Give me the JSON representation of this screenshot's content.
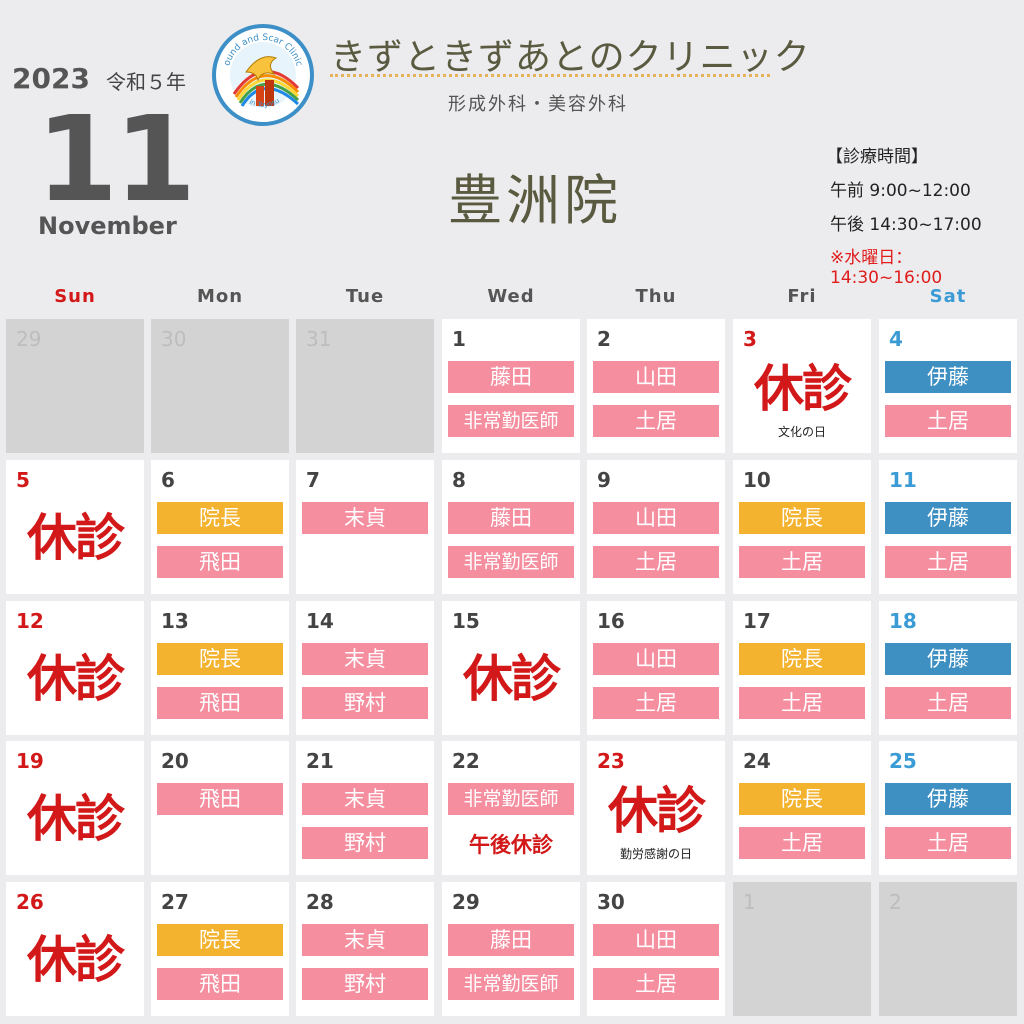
{
  "header": {
    "year": "2023",
    "era": "令和５年",
    "month_number": "11",
    "month_name": "November",
    "clinic_name": "きずときずあとのクリニック",
    "clinic_sub": "形成外科・美容外科",
    "branch": "豊洲院",
    "logo_text_top": "ound and Scar Clinic",
    "logo_text_bottom": "in Toyosu"
  },
  "hours": {
    "title": "【診療時間】",
    "morning": "午前 9:00~12:00",
    "afternoon": "午後 14:30~17:00",
    "wednesday": "※水曜日：14:30~16:00"
  },
  "colors": {
    "sunday": "#d21818",
    "saturday": "#3a9bd5",
    "pink": "#f58fa0",
    "orange": "#f3b32f",
    "blue": "#3e8fc2",
    "closed": "#d21818"
  },
  "weekdays": [
    "Sun",
    "Mon",
    "Tue",
    "Wed",
    "Thu",
    "Fri",
    "Sat"
  ],
  "closed_label": "休診",
  "weeks": [
    [
      {
        "day": "29",
        "other": true
      },
      {
        "day": "30",
        "other": true
      },
      {
        "day": "31",
        "other": true
      },
      {
        "day": "1",
        "tags": [
          {
            "text": "藤田",
            "color": "pink"
          },
          {
            "text": "非常勤医師",
            "color": "pink"
          }
        ]
      },
      {
        "day": "2",
        "tags": [
          {
            "text": "山田",
            "color": "pink"
          },
          {
            "text": "土居",
            "color": "pink"
          }
        ]
      },
      {
        "day": "3",
        "holiday": true,
        "closed": true,
        "note": "文化の日"
      },
      {
        "day": "4",
        "tags": [
          {
            "text": "伊藤",
            "color": "blue"
          },
          {
            "text": "土居",
            "color": "pink"
          }
        ]
      }
    ],
    [
      {
        "day": "5",
        "closed": true
      },
      {
        "day": "6",
        "tags": [
          {
            "text": "院長",
            "color": "orange"
          },
          {
            "text": "飛田",
            "color": "pink"
          }
        ]
      },
      {
        "day": "7",
        "tags": [
          {
            "text": "末貞",
            "color": "pink"
          }
        ]
      },
      {
        "day": "8",
        "tags": [
          {
            "text": "藤田",
            "color": "pink"
          },
          {
            "text": "非常勤医師",
            "color": "pink"
          }
        ]
      },
      {
        "day": "9",
        "tags": [
          {
            "text": "山田",
            "color": "pink"
          },
          {
            "text": "土居",
            "color": "pink"
          }
        ]
      },
      {
        "day": "10",
        "tags": [
          {
            "text": "院長",
            "color": "orange"
          },
          {
            "text": "土居",
            "color": "pink"
          }
        ]
      },
      {
        "day": "11",
        "tags": [
          {
            "text": "伊藤",
            "color": "blue"
          },
          {
            "text": "土居",
            "color": "pink"
          }
        ]
      }
    ],
    [
      {
        "day": "12",
        "closed": true
      },
      {
        "day": "13",
        "tags": [
          {
            "text": "院長",
            "color": "orange"
          },
          {
            "text": "飛田",
            "color": "pink"
          }
        ]
      },
      {
        "day": "14",
        "tags": [
          {
            "text": "末貞",
            "color": "pink"
          },
          {
            "text": "野村",
            "color": "pink"
          }
        ]
      },
      {
        "day": "15",
        "closed": true
      },
      {
        "day": "16",
        "tags": [
          {
            "text": "山田",
            "color": "pink"
          },
          {
            "text": "土居",
            "color": "pink"
          }
        ]
      },
      {
        "day": "17",
        "tags": [
          {
            "text": "院長",
            "color": "orange"
          },
          {
            "text": "土居",
            "color": "pink"
          }
        ]
      },
      {
        "day": "18",
        "tags": [
          {
            "text": "伊藤",
            "color": "blue"
          },
          {
            "text": "土居",
            "color": "pink"
          }
        ]
      }
    ],
    [
      {
        "day": "19",
        "closed": true
      },
      {
        "day": "20",
        "tags": [
          {
            "text": "飛田",
            "color": "pink"
          }
        ]
      },
      {
        "day": "21",
        "tags": [
          {
            "text": "末貞",
            "color": "pink"
          },
          {
            "text": "野村",
            "color": "pink"
          }
        ]
      },
      {
        "day": "22",
        "tags": [
          {
            "text": "非常勤医師",
            "color": "pink"
          }
        ],
        "pm_closed": "午後休診"
      },
      {
        "day": "23",
        "holiday": true,
        "closed": true,
        "note": "勤労感謝の日"
      },
      {
        "day": "24",
        "tags": [
          {
            "text": "院長",
            "color": "orange"
          },
          {
            "text": "土居",
            "color": "pink"
          }
        ]
      },
      {
        "day": "25",
        "tags": [
          {
            "text": "伊藤",
            "color": "blue"
          },
          {
            "text": "土居",
            "color": "pink"
          }
        ]
      }
    ],
    [
      {
        "day": "26",
        "closed": true
      },
      {
        "day": "27",
        "tags": [
          {
            "text": "院長",
            "color": "orange"
          },
          {
            "text": "飛田",
            "color": "pink"
          }
        ]
      },
      {
        "day": "28",
        "tags": [
          {
            "text": "末貞",
            "color": "pink"
          },
          {
            "text": "野村",
            "color": "pink"
          }
        ]
      },
      {
        "day": "29",
        "tags": [
          {
            "text": "藤田",
            "color": "pink"
          },
          {
            "text": "非常勤医師",
            "color": "pink"
          }
        ]
      },
      {
        "day": "30",
        "tags": [
          {
            "text": "山田",
            "color": "pink"
          },
          {
            "text": "土居",
            "color": "pink"
          }
        ]
      },
      {
        "day": "1",
        "other": true
      },
      {
        "day": "2",
        "other": true
      }
    ]
  ]
}
